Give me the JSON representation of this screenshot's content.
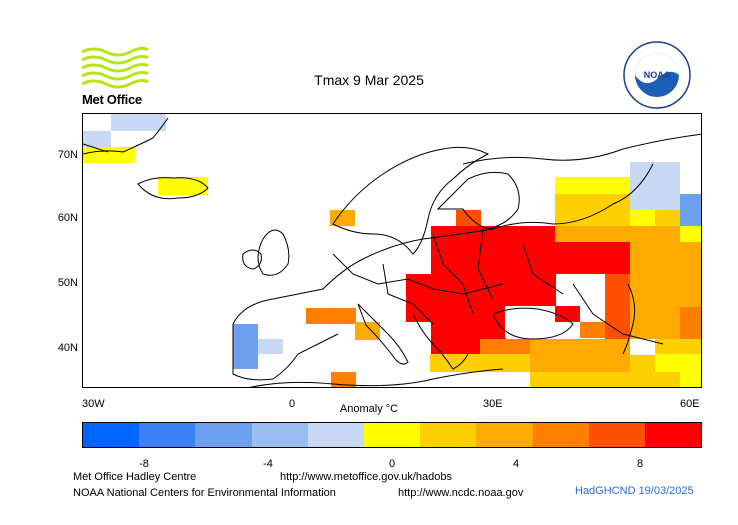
{
  "title": "Tmax 9 Mar 2025",
  "met_office": {
    "name": "Met Office"
  },
  "noaa_logo": {
    "text": "NOAA"
  },
  "lat_labels": [
    "70N",
    "60N",
    "50N",
    "40N"
  ],
  "lon_labels": [
    "30W",
    "0",
    "30E",
    "60E"
  ],
  "colorbar": {
    "label": "Anomaly °C",
    "ticks": [
      "-8",
      "-4",
      "0",
      "4",
      "8"
    ],
    "colors": [
      "#0064ff",
      "#3c82f5",
      "#6ea0f0",
      "#9bbef0",
      "#c8d8f5",
      "#ffff00",
      "#ffd000",
      "#ffaa00",
      "#ff8000",
      "#ff5000",
      "#ff0000"
    ]
  },
  "footer": {
    "hadley": "Met Office Hadley Centre",
    "hadley_url": "http://www.metoffice.gov.uk/hadobs",
    "ncei": "NOAA National Centers for Environmental Information",
    "ncei_url": "http://www.ncdc.noaa.gov",
    "stamp": "HadGHCND 19/03/2025"
  }
}
